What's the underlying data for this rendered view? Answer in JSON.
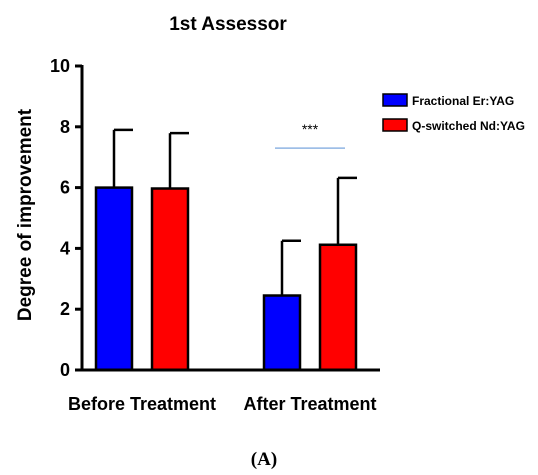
{
  "chart_data": {
    "type": "bar",
    "title": "1st Assessor",
    "ylabel": "Degree of improvement",
    "xlabel": "",
    "ylim": [
      0,
      10
    ],
    "yticks": [
      0,
      2,
      4,
      6,
      8,
      10
    ],
    "categories": [
      "Before Treatment",
      "After Treatment"
    ],
    "series": [
      {
        "name": "Fractional Er:YAG",
        "color": "#0000ff",
        "values": [
          6.0,
          2.45
        ],
        "errors": [
          1.9,
          1.8
        ]
      },
      {
        "name": "Q-switched Nd:YAG",
        "color": "#ff0000",
        "values": [
          5.97,
          4.12
        ],
        "errors": [
          1.82,
          2.2
        ]
      }
    ],
    "annotations": [
      {
        "text": "***",
        "category": "After Treatment"
      }
    ],
    "significance_line_color": "#8fb4e3",
    "legend_position": "top-right",
    "grid": false
  },
  "panel_label": "(A)"
}
